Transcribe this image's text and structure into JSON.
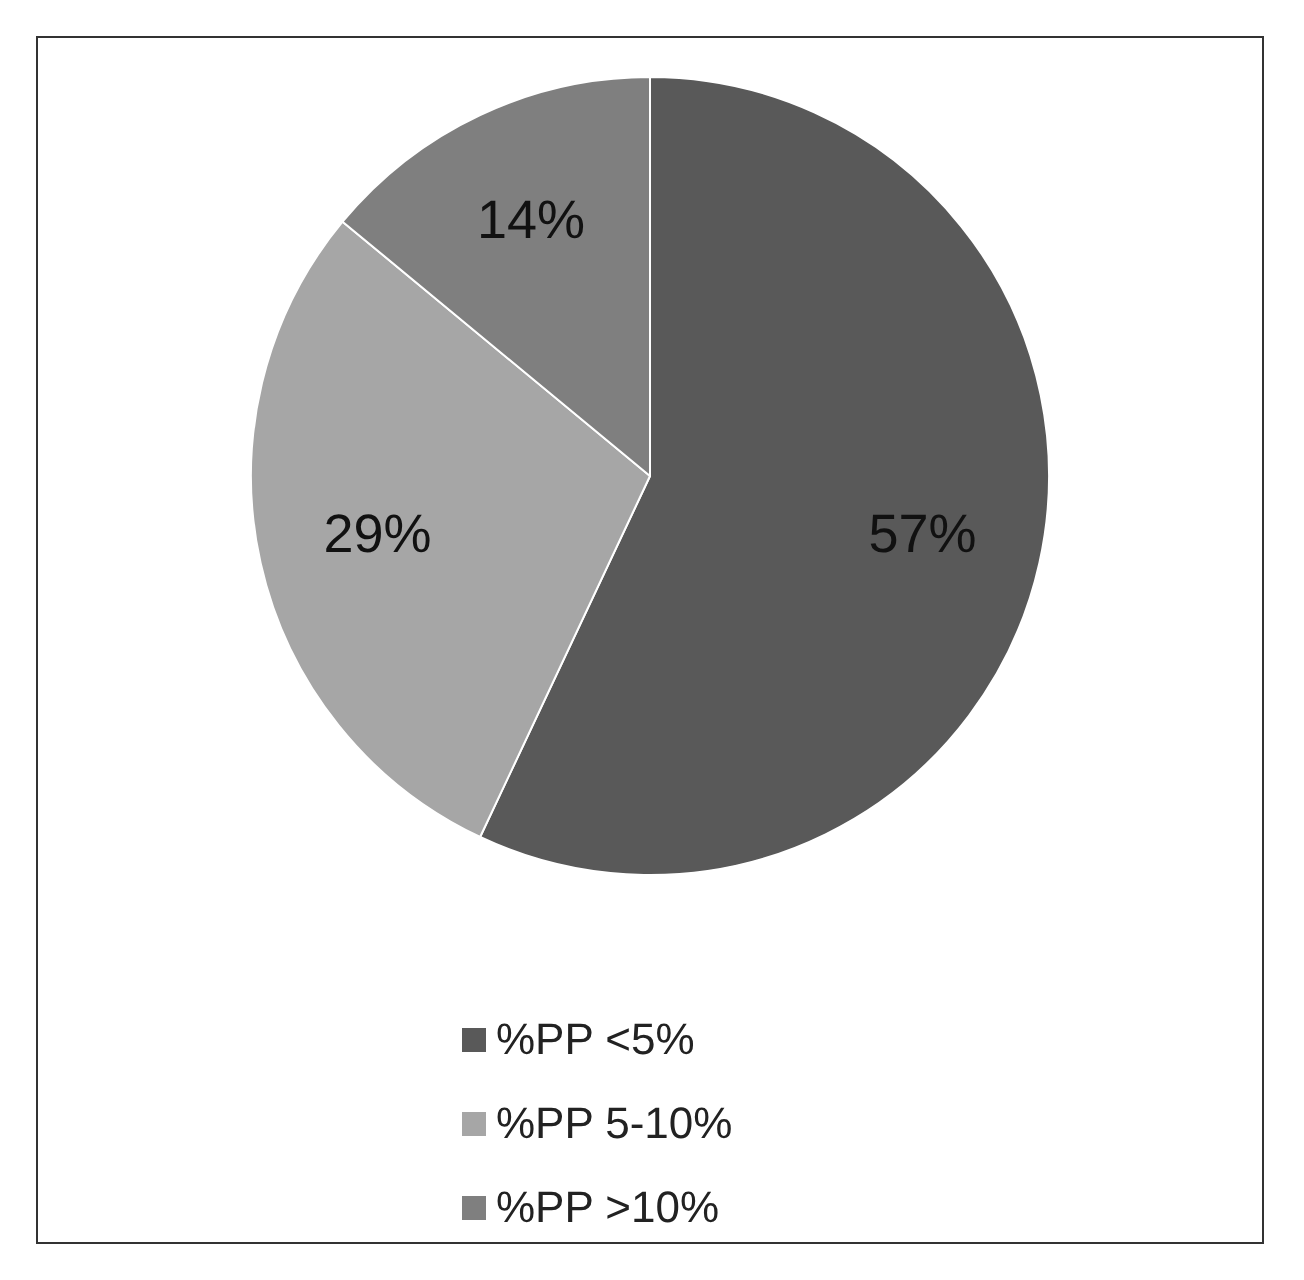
{
  "chart_data": {
    "type": "pie",
    "categories": [
      "%PP <5%",
      "%PP 5-10%",
      "%PP >10%"
    ],
    "values": [
      57,
      29,
      14
    ],
    "colors": [
      "#595959",
      "#a6a6a6",
      "#7f7f7f"
    ],
    "value_labels": [
      "57%",
      "29%",
      "14%"
    ],
    "legend": "bottom"
  }
}
